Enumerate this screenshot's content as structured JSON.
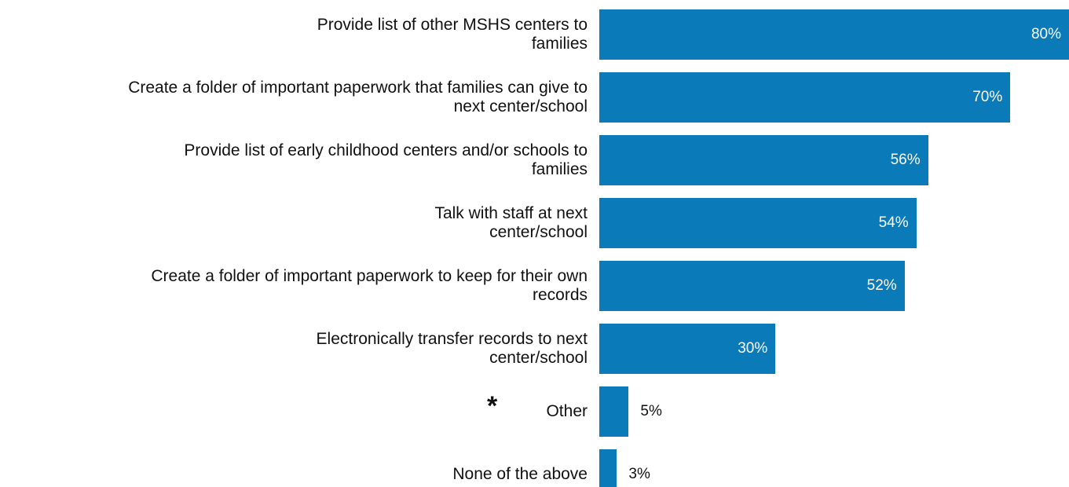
{
  "chart_data": {
    "type": "hbar",
    "categories": [
      "Provide list of other MSHS centers to\nfamilies",
      "Create a folder of important paperwork that families can give to\nnext center/school",
      "Provide list of early childhood centers and/or schools to\nfamilies",
      "Talk with staff at next\ncenter/school",
      "Create a folder of important paperwork to keep for their own\nrecords",
      "Electronically transfer records to next\ncenter/school",
      "Other",
      "None of the above"
    ],
    "values": [
      80,
      70,
      56,
      54,
      52,
      30,
      5,
      3
    ],
    "value_labels": [
      "80%",
      "70%",
      "56%",
      "54%",
      "52%",
      "30%",
      "5%",
      "3%"
    ],
    "annotations": [
      "*"
    ],
    "color": "#0a7ab8",
    "xlim": [
      0,
      80
    ]
  }
}
